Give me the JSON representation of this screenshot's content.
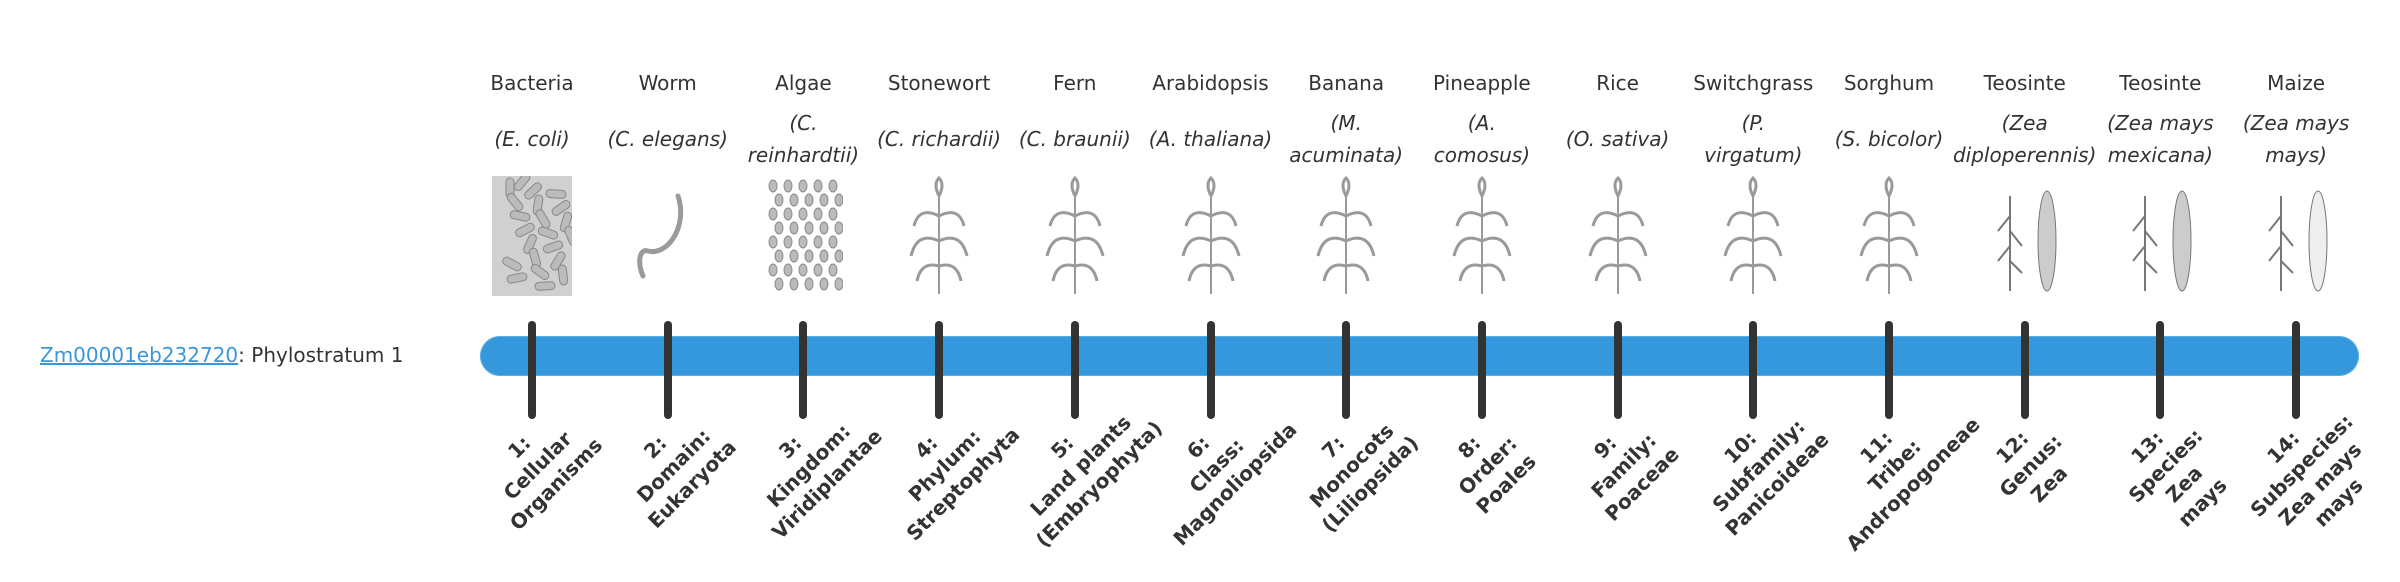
{
  "gene": {
    "id": "Zm00001eb232720",
    "suffix": ": Phylostratum 1"
  },
  "colors": {
    "bar": "#3598dc",
    "link": "#3a97dc",
    "tick": "#333333"
  },
  "strata": [
    {
      "common": "Bacteria",
      "sci": [
        "(E. coli)"
      ],
      "icon": "bacteria-icon",
      "label": [
        "1:",
        "Cellular",
        "Organisms"
      ]
    },
    {
      "common": "Worm",
      "sci": [
        "(C. elegans)"
      ],
      "icon": "worm-icon",
      "label": [
        "2:",
        "Domain:",
        "Eukaryota"
      ]
    },
    {
      "common": "Algae",
      "sci": [
        "(C.",
        "reinhardtii)"
      ],
      "icon": "algae-icon",
      "label": [
        "3:",
        "Kingdom:",
        "Viridiplantae"
      ]
    },
    {
      "common": "Stonewort",
      "sci": [
        "(C. richardii)"
      ],
      "icon": "stonewort-icon",
      "label": [
        "4:",
        "Phylum:",
        "Streptophyta"
      ]
    },
    {
      "common": "Fern",
      "sci": [
        "(C. braunii)"
      ],
      "icon": "fern-icon",
      "label": [
        "5:",
        "Land plants",
        "(Embryophyta)"
      ]
    },
    {
      "common": "Arabidopsis",
      "sci": [
        "(A. thaliana)"
      ],
      "icon": "arabidopsis-icon",
      "label": [
        "6:",
        "Class:",
        "Magnoliopsida"
      ]
    },
    {
      "common": "Banana",
      "sci": [
        "(M.",
        "acuminata)"
      ],
      "icon": "banana-icon",
      "label": [
        "7:",
        "Monocots",
        "(Liliopsida)"
      ]
    },
    {
      "common": "Pineapple",
      "sci": [
        "(A.",
        "comosus)"
      ],
      "icon": "pineapple-icon",
      "label": [
        "8:",
        "Order:",
        "Poales"
      ]
    },
    {
      "common": "Rice",
      "sci": [
        "(O. sativa)"
      ],
      "icon": "rice-icon",
      "label": [
        "9:",
        "Family:",
        "Poaceae"
      ]
    },
    {
      "common": "Switchgrass",
      "sci": [
        "(P.",
        "virgatum)"
      ],
      "icon": "switchgrass-icon",
      "label": [
        "10:",
        "Subfamily:",
        "Panicoideae"
      ]
    },
    {
      "common": "Sorghum",
      "sci": [
        "(S. bicolor)"
      ],
      "icon": "sorghum-icon",
      "label": [
        "11:",
        "Tribe:",
        "Andropogoneae"
      ]
    },
    {
      "common": "Teosinte",
      "sci": [
        "(Zea",
        "diploperennis)"
      ],
      "icon": "teosinte-icon",
      "label": [
        "12:",
        "Genus:",
        "Zea"
      ]
    },
    {
      "common": "Teosinte",
      "sci": [
        "(Zea mays",
        "mexicana)"
      ],
      "icon": "teosinte-icon",
      "label": [
        "13:",
        "Species:",
        "Zea",
        "mays"
      ]
    },
    {
      "common": "Maize",
      "sci": [
        "(Zea mays",
        "mays)"
      ],
      "icon": "maize-icon",
      "label": [
        "14:",
        "Subspecies:",
        "Zea mays",
        "mays"
      ]
    }
  ]
}
